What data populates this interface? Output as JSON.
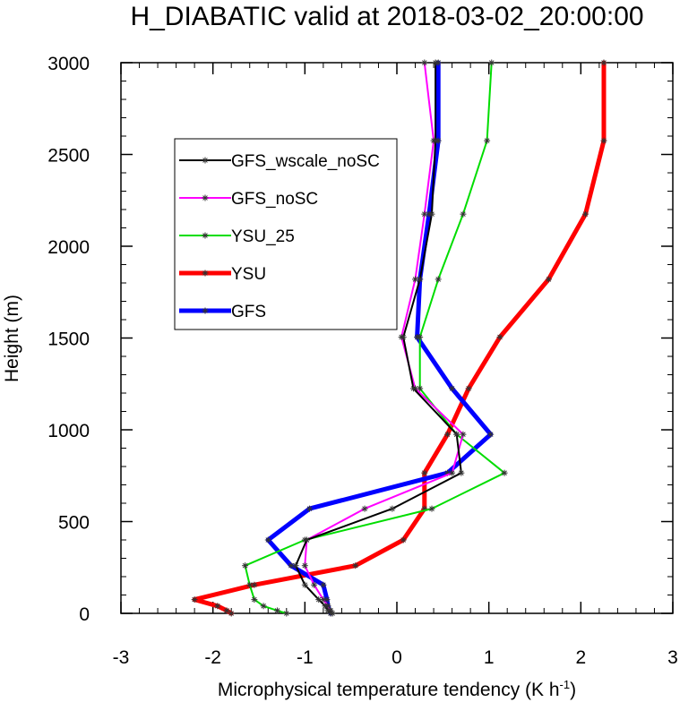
{
  "chart_data": {
    "type": "line",
    "title": "H_DIABATIC valid at 2018-03-02_20:00:00",
    "xlabel": "Microphysical temperature tendency (K h",
    "xlabel_sup": "-1",
    "xlabel_close": ")",
    "ylabel": "Height (m)",
    "xlim": [
      -3,
      3
    ],
    "ylim": [
      0,
      3000
    ],
    "xticks": [
      -3,
      -2,
      -1,
      0,
      1,
      2,
      3
    ],
    "xtick_labels": [
      "-3",
      "-2",
      "-1",
      "0",
      "1",
      "2",
      "3"
    ],
    "yticks": [
      0,
      500,
      1000,
      1500,
      2000,
      2500,
      3000
    ],
    "ytick_labels": [
      "0",
      "500",
      "1000",
      "1500",
      "2000",
      "2500",
      "3000"
    ],
    "grid": false,
    "legend_position": "upper-left",
    "heights": [
      0,
      15,
      40,
      75,
      155,
      260,
      400,
      570,
      765,
      975,
      1225,
      1505,
      1820,
      2175,
      2575,
      3000
    ],
    "series": [
      {
        "name": "GFS_wscale_noSC",
        "color": "#000000",
        "width": 2,
        "x": [
          -0.72,
          -0.75,
          -0.78,
          -0.85,
          -1.0,
          -1.1,
          -0.98,
          -0.05,
          0.7,
          0.65,
          0.18,
          0.07,
          0.25,
          0.38,
          0.42,
          0.42
        ]
      },
      {
        "name": "GFS_noSC",
        "color": "#ff00ff",
        "width": 2,
        "x": [
          -0.7,
          -0.72,
          -0.75,
          -0.8,
          -0.9,
          -1.0,
          -0.98,
          -0.35,
          0.6,
          0.72,
          0.2,
          0.05,
          0.2,
          0.3,
          0.4,
          0.3
        ]
      },
      {
        "name": "YSU_25",
        "color": "#00dd00",
        "width": 2,
        "x": [
          -1.2,
          -1.3,
          -1.45,
          -1.55,
          -1.6,
          -1.65,
          -1.0,
          0.38,
          1.17,
          0.65,
          0.25,
          0.25,
          0.45,
          0.72,
          0.98,
          1.03
        ]
      },
      {
        "name": "YSU",
        "color": "#ff0000",
        "width": 5,
        "x": [
          -1.8,
          -1.85,
          -1.95,
          -2.2,
          -1.55,
          -0.45,
          0.07,
          0.3,
          0.3,
          0.55,
          0.78,
          1.12,
          1.65,
          2.05,
          2.25,
          2.25
        ]
      },
      {
        "name": "GFS",
        "color": "#0000ff",
        "width": 5,
        "x": [
          -0.72,
          -0.73,
          -0.75,
          -0.76,
          -0.8,
          -1.15,
          -1.4,
          -0.95,
          0.55,
          1.02,
          0.6,
          0.22,
          0.25,
          0.35,
          0.45,
          0.45
        ]
      }
    ]
  }
}
